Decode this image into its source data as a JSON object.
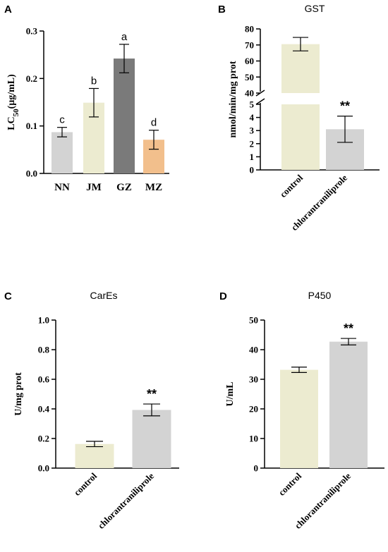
{
  "chart_data": [
    {
      "panel": "A",
      "type": "bar",
      "title": "",
      "ylabel": "LC50(μg/mL)",
      "categories": [
        "NN",
        "JM",
        "GZ",
        "MZ"
      ],
      "values": [
        0.087,
        0.149,
        0.242,
        0.071
      ],
      "errors": [
        0.01,
        0.03,
        0.03,
        0.02
      ],
      "annotations": [
        "c",
        "b",
        "a",
        "d"
      ],
      "colors": [
        "#d3d3d3",
        "#ecebd0",
        "#7a7a7a",
        "#f2bf8c"
      ],
      "ylim": [
        0,
        0.3
      ],
      "yticks": [
        "0.0",
        "0.1",
        "0.2",
        "0.3"
      ],
      "grid": false
    },
    {
      "panel": "B",
      "type": "bar",
      "title": "GST",
      "ylabel": "nmol/min/mg prot",
      "categories": [
        "control",
        "chlorantraniliprole"
      ],
      "values": [
        70.5,
        3.1
      ],
      "errors": [
        4.2,
        1.0
      ],
      "annotations": [
        "",
        "**"
      ],
      "colors": [
        "#ecebd0",
        "#d3d3d3"
      ],
      "broken_axis": true,
      "ylim_lower": [
        0,
        5
      ],
      "ylim_upper": [
        40,
        80
      ],
      "yticks_lower": [
        "0",
        "1",
        "2",
        "3",
        "4",
        "5"
      ],
      "yticks_upper": [
        "40",
        "50",
        "60",
        "70",
        "80"
      ],
      "grid": false
    },
    {
      "panel": "C",
      "type": "bar",
      "title": "CarEs",
      "ylabel": "U/mg prot",
      "categories": [
        "control",
        "chlorantraniliprole"
      ],
      "values": [
        0.163,
        0.393
      ],
      "errors": [
        0.018,
        0.04
      ],
      "annotations": [
        "",
        "**"
      ],
      "colors": [
        "#ecebd0",
        "#d3d3d3"
      ],
      "ylim": [
        0,
        1.0
      ],
      "yticks": [
        "0.0",
        "0.2",
        "0.4",
        "0.6",
        "0.8",
        "1.0"
      ],
      "grid": false
    },
    {
      "panel": "D",
      "type": "bar",
      "title": "P450",
      "ylabel": "U/mL",
      "categories": [
        "control",
        "chlorantraniliprole"
      ],
      "values": [
        33.2,
        42.7
      ],
      "errors": [
        0.9,
        1.1
      ],
      "annotations": [
        "",
        "**"
      ],
      "colors": [
        "#ecebd0",
        "#d3d3d3"
      ],
      "ylim": [
        0,
        50
      ],
      "yticks": [
        "0",
        "10",
        "20",
        "30",
        "40",
        "50"
      ],
      "grid": false
    }
  ]
}
